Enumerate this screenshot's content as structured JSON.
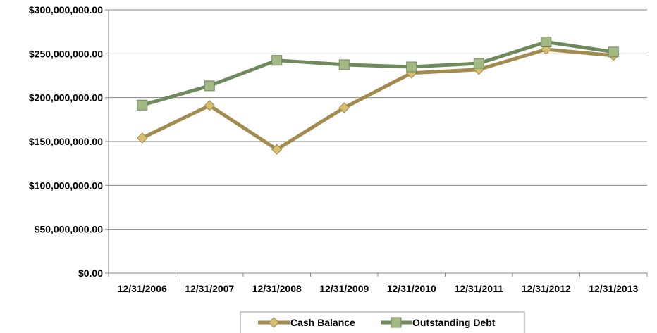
{
  "chart_data": {
    "type": "line",
    "categories": [
      "12/31/2006",
      "12/31/2007",
      "12/31/2008",
      "12/31/2009",
      "12/31/2010",
      "12/31/2011",
      "12/31/2012",
      "12/31/2013"
    ],
    "ylim": [
      0,
      300000000
    ],
    "y_ticks": [
      0,
      50000000,
      100000000,
      150000000,
      200000000,
      250000000,
      300000000
    ],
    "y_tick_labels": [
      "$0.00",
      "$50,000,000.00",
      "$100,000,000.00",
      "$150,000,000.00",
      "$200,000,000.00",
      "$250,000,000.00",
      "$300,000,000.00"
    ],
    "grid": true,
    "legend_position": "bottom",
    "series": [
      {
        "name": "Cash Balance",
        "values": [
          154000000,
          191000000,
          141000000,
          188500000,
          228000000,
          232000000,
          255000000,
          248000000
        ],
        "line_color": "#a18b4f",
        "marker": "diamond",
        "marker_color": "#d6c06f"
      },
      {
        "name": "Outstanding Debt",
        "values": [
          191500000,
          213500000,
          242500000,
          237500000,
          235000000,
          239000000,
          263500000,
          252000000
        ],
        "line_color": "#6e8a5c",
        "marker": "square",
        "marker_color": "#a3b883"
      }
    ]
  }
}
